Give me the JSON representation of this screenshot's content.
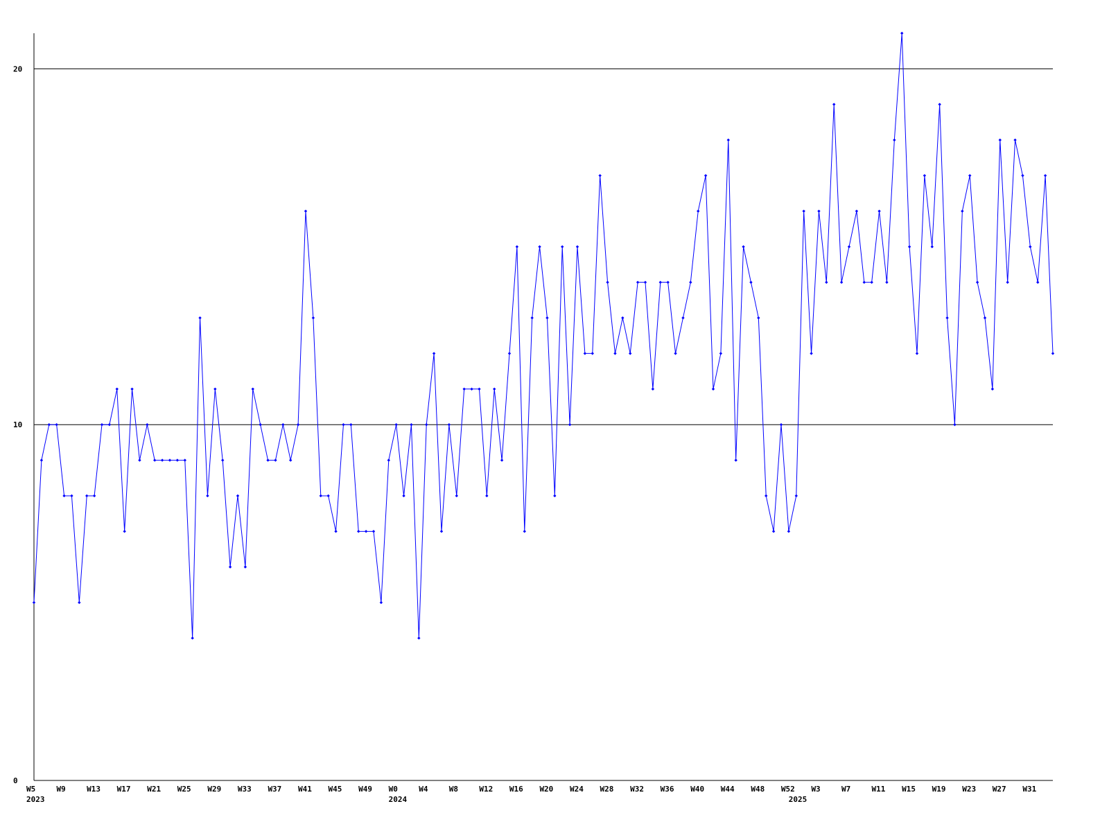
{
  "chart_data": {
    "type": "line",
    "categories": [
      "W5",
      null,
      null,
      null,
      "W9",
      null,
      null,
      null,
      "W13",
      null,
      null,
      null,
      "W17",
      null,
      null,
      null,
      "W21",
      null,
      null,
      null,
      "W25",
      null,
      null,
      null,
      "W29",
      null,
      null,
      null,
      "W33",
      null,
      null,
      null,
      "W37",
      null,
      null,
      null,
      "W41",
      null,
      null,
      null,
      "W45",
      null,
      null,
      null,
      "W49",
      null,
      null,
      null,
      "W0",
      null,
      null,
      null,
      "W4",
      null,
      null,
      null,
      "W8",
      null,
      null,
      null,
      "W12",
      null,
      null,
      null,
      "W16",
      null,
      null,
      null,
      "W20",
      null,
      null,
      null,
      "W24",
      null,
      null,
      null,
      "W28",
      null,
      null,
      null,
      "W32",
      null,
      null,
      null,
      "W36",
      null,
      null,
      null,
      "W40",
      null,
      null,
      null,
      "W44",
      null,
      null,
      null,
      "W48",
      null,
      null,
      null,
      "W52",
      null,
      null,
      null,
      "W3",
      null,
      null,
      null,
      "W7",
      null,
      null,
      null,
      "W11",
      null,
      null,
      null,
      "W15",
      null,
      null,
      null,
      "W19",
      null,
      null,
      null,
      "W23",
      null,
      null,
      null,
      "W27",
      null,
      null,
      null,
      "W31",
      null,
      null,
      null
    ],
    "year_labels": [
      {
        "category": 0,
        "label": "2023"
      },
      {
        "category": 48,
        "label": "2024"
      },
      {
        "category": 101,
        "label": "2025"
      }
    ],
    "series": [
      {
        "color": "#0000ff",
        "values": [
          5,
          9,
          10,
          10,
          8,
          8,
          5,
          8,
          8,
          10,
          10,
          11,
          7,
          11,
          9,
          10,
          9,
          9,
          9,
          9,
          9,
          4,
          13,
          8,
          11,
          9,
          6,
          8,
          6,
          11,
          10,
          9,
          9,
          10,
          9,
          10,
          16,
          13,
          8,
          8,
          7,
          10,
          10,
          7,
          7,
          7,
          5,
          9,
          10,
          8,
          10,
          4,
          10,
          12,
          7,
          10,
          8,
          11,
          11,
          11,
          8,
          11,
          9,
          12,
          15,
          7,
          13,
          15,
          13,
          8,
          15,
          10,
          15,
          12,
          12,
          17,
          14,
          12,
          13,
          12,
          14,
          14,
          11,
          14,
          14,
          12,
          13,
          14,
          16,
          17,
          11,
          12,
          18,
          9,
          15,
          14,
          13,
          8,
          7,
          10,
          7,
          8,
          16,
          12,
          16,
          14,
          19,
          14,
          15,
          16,
          14,
          14,
          16,
          14,
          18,
          21,
          15,
          12,
          17,
          15,
          19,
          13,
          10,
          16,
          17,
          14,
          13,
          11,
          18,
          14,
          18,
          17,
          15,
          14,
          17,
          12
        ]
      }
    ],
    "ylim": [
      0,
      21
    ],
    "yticks": [
      0,
      10,
      20
    ],
    "grid": true
  }
}
